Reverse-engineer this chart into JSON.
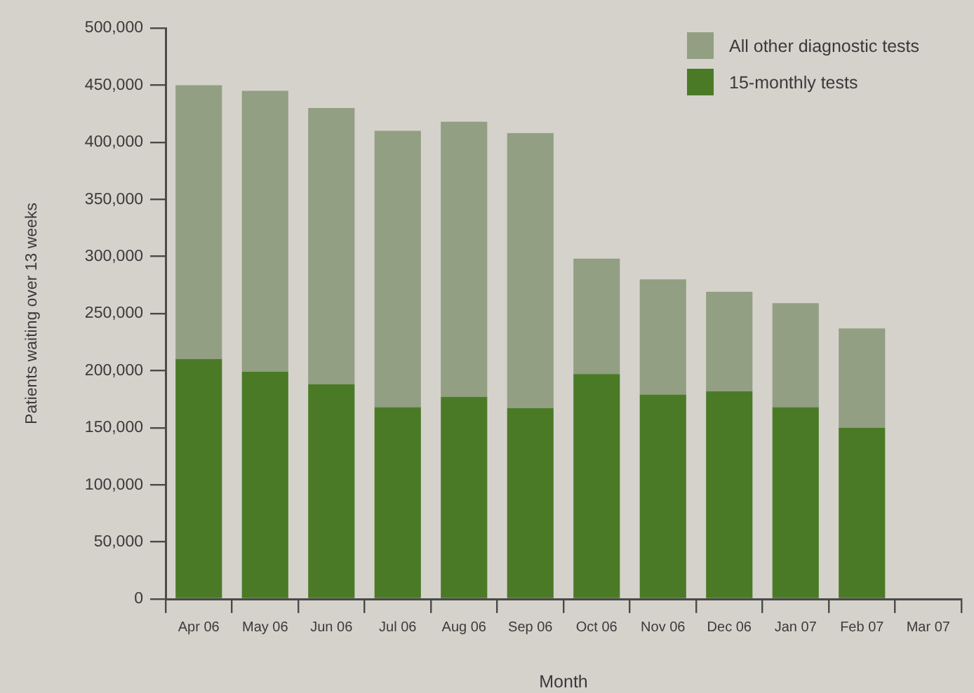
{
  "chart_data": {
    "type": "bar",
    "xlabel": "Month",
    "ylabel": "Patients waiting over 13 weeks",
    "categories": [
      "Apr 06",
      "May 06",
      "Jun 06",
      "Jul 06",
      "Aug 06",
      "Sep 06",
      "Oct 06",
      "Nov 06",
      "Dec 06",
      "Jan 07",
      "Feb 07",
      "Mar 07"
    ],
    "series": [
      {
        "name": "15-monthly tests",
        "color": "#4b7a27",
        "values": [
          210000,
          199000,
          188000,
          168000,
          177000,
          167000,
          197000,
          179000,
          182000,
          168000,
          150000,
          null
        ]
      },
      {
        "name": "All other diagnostic tests",
        "color": "#929f82",
        "values": [
          240000,
          246000,
          242000,
          242000,
          241000,
          241000,
          101000,
          101000,
          87000,
          91000,
          87000,
          null
        ]
      }
    ],
    "stacked": true,
    "ylim": [
      0,
      500000
    ],
    "yticks": [
      0,
      {
        "value": 50000,
        "label": "50,000"
      },
      {
        "value": 100000,
        "label": "100,000"
      },
      {
        "value": 150000,
        "label": "150,000"
      },
      {
        "value": 200000,
        "label": "200,000"
      },
      {
        "value": 250000,
        "label": "250,000"
      },
      {
        "value": 300000,
        "label": "300,000"
      },
      {
        "value": 350000,
        "label": "350,000"
      },
      {
        "value": 400000,
        "label": "400,000"
      },
      {
        "value": 450000,
        "label": "450,000"
      },
      {
        "value": 500000,
        "label": "500,000"
      }
    ],
    "legend": "top right"
  }
}
